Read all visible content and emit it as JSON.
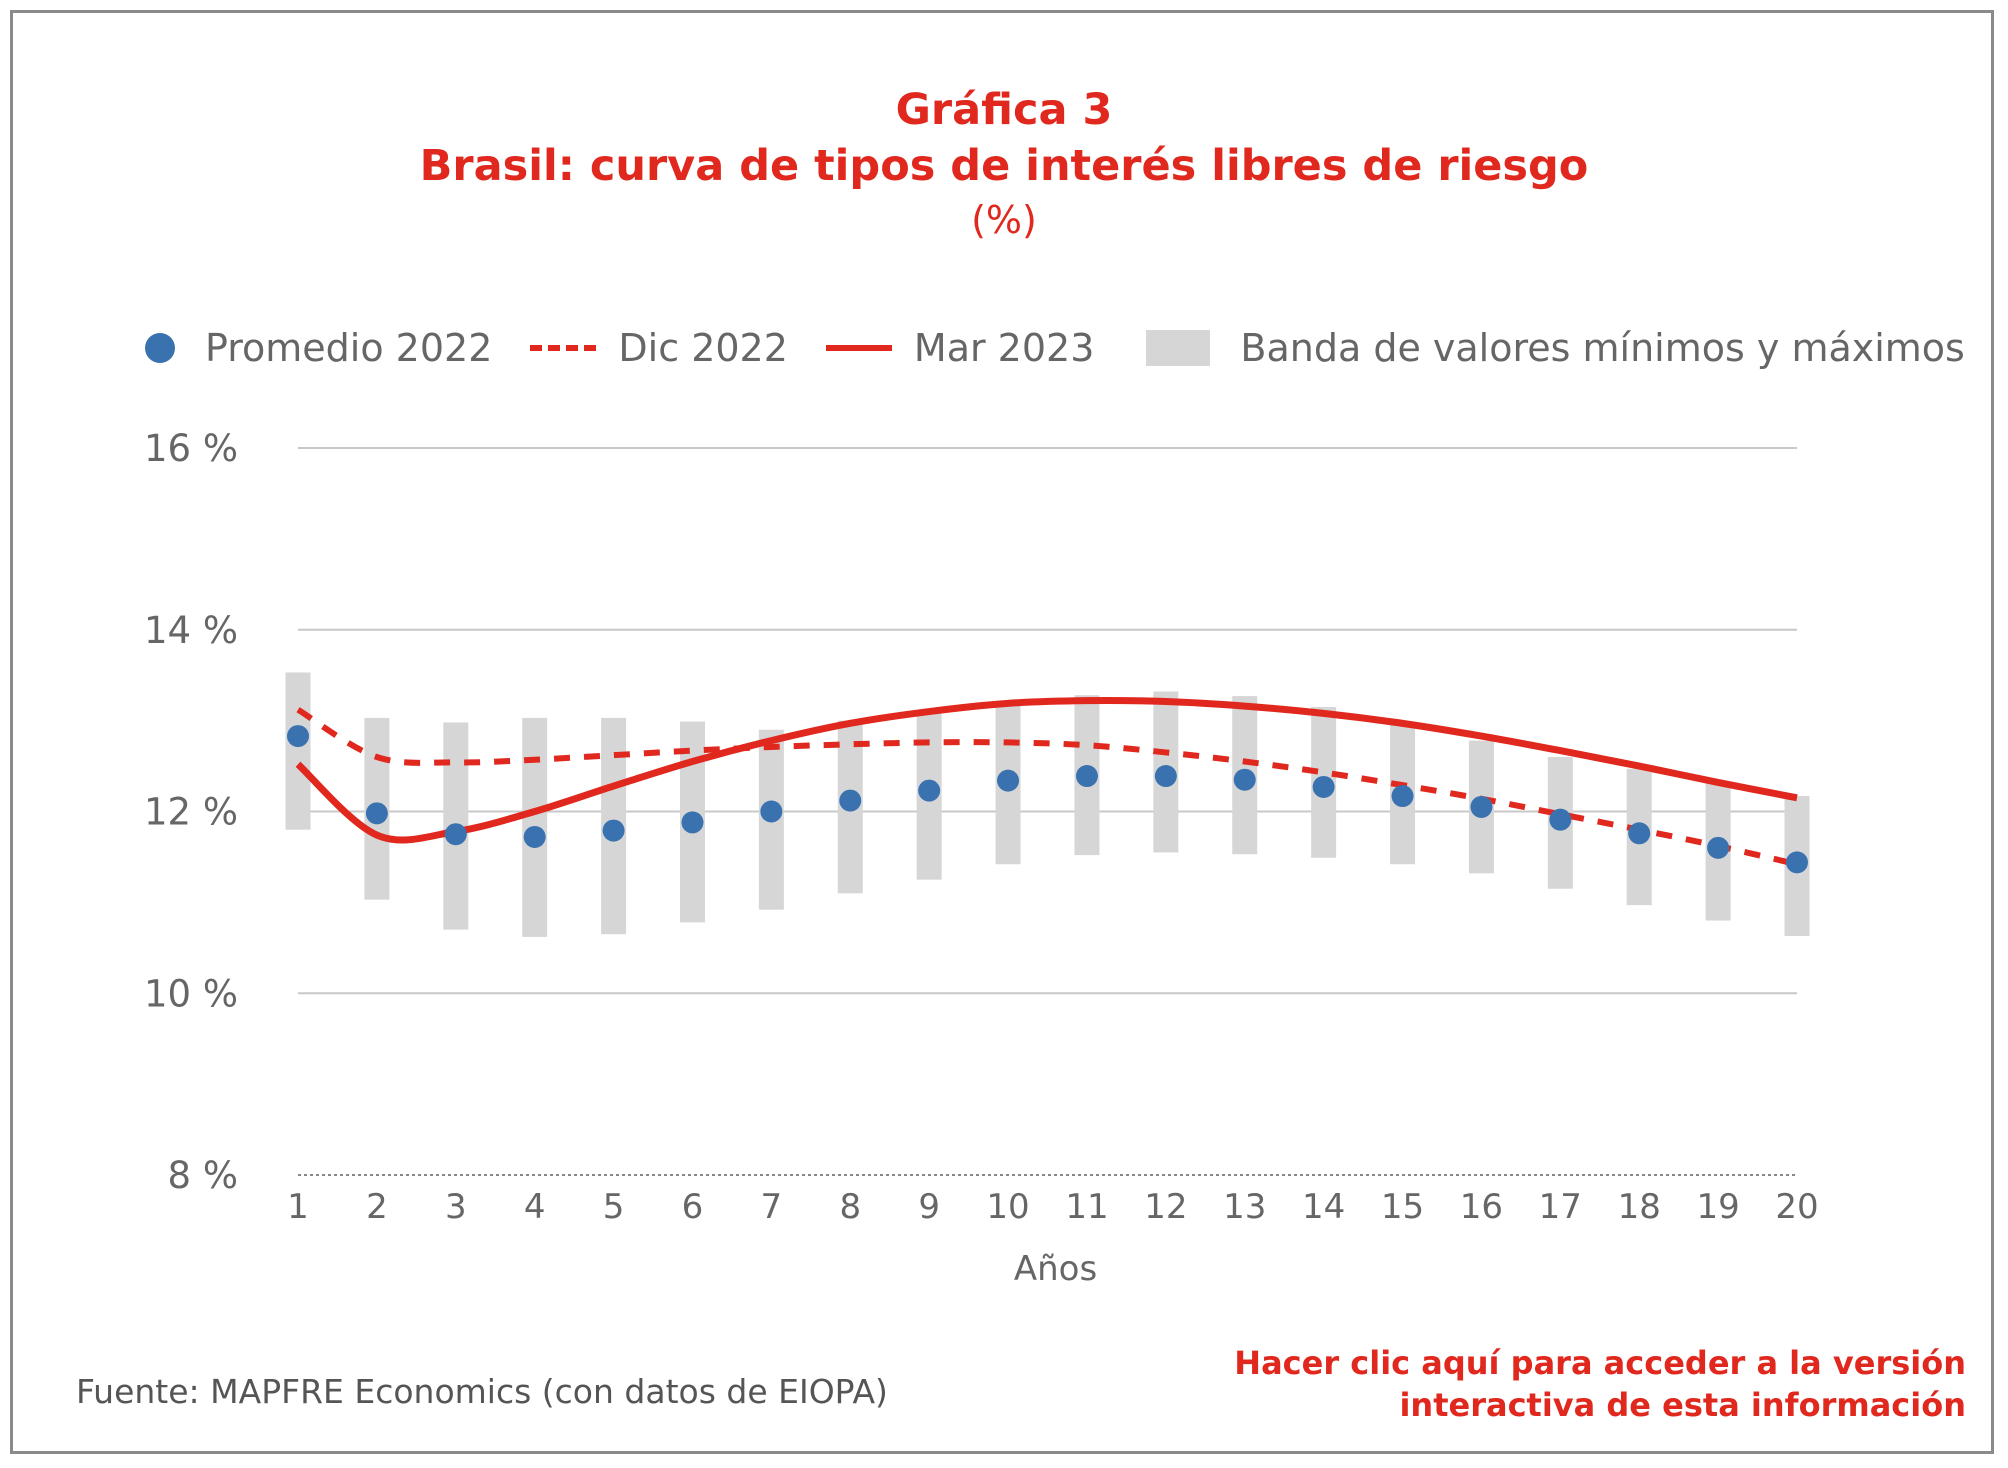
{
  "title_line1": "Gráfica 3",
  "title_line2": "Brasil: curva de tipos de interés libres de riesgo",
  "title_line3": "(%)",
  "legend": {
    "promedio": "Promedio 2022",
    "dic": "Dic 2022",
    "mar": "Mar 2023",
    "banda": "Banda de valores mínimos y máximos"
  },
  "source": "Fuente: MAPFRE Economics (con datos de EIOPA)",
  "link_line1": "Hacer clic aquí para acceder a la versión",
  "link_line2": "interactiva de esta información",
  "colors": {
    "accent": "#e0281e",
    "dots": "#3a72b0",
    "band": "#d6d6d6",
    "grid": "#c8c8c8"
  },
  "chart_data": {
    "type": "line",
    "xlabel": "Años",
    "ylabel": "",
    "ylim": [
      8,
      16
    ],
    "yticks": [
      8,
      10,
      12,
      14,
      16
    ],
    "ytick_labels": [
      "8 %",
      "10 %",
      "12 %",
      "14 %",
      "16 %"
    ],
    "x": [
      1,
      2,
      3,
      4,
      5,
      6,
      7,
      8,
      9,
      10,
      11,
      12,
      13,
      14,
      15,
      16,
      17,
      18,
      19,
      20
    ],
    "grid": true,
    "legend_position": "top",
    "series": [
      {
        "name": "Promedio 2022",
        "style": "dots",
        "values": [
          12.83,
          11.98,
          11.75,
          11.72,
          11.79,
          11.88,
          12.0,
          12.12,
          12.23,
          12.34,
          12.39,
          12.39,
          12.35,
          12.27,
          12.17,
          12.05,
          11.91,
          11.76,
          11.6,
          11.44
        ]
      },
      {
        "name": "Dic 2022",
        "style": "dashed",
        "values": [
          13.12,
          12.6,
          12.54,
          12.57,
          12.62,
          12.67,
          12.71,
          12.74,
          12.76,
          12.76,
          12.73,
          12.65,
          12.55,
          12.43,
          12.29,
          12.14,
          11.97,
          11.8,
          11.62,
          11.42
        ]
      },
      {
        "name": "Mar 2023",
        "style": "solid",
        "values": [
          12.52,
          11.74,
          11.78,
          12.0,
          12.28,
          12.55,
          12.78,
          12.97,
          13.1,
          13.19,
          13.22,
          13.21,
          13.16,
          13.08,
          12.97,
          12.83,
          12.67,
          12.5,
          12.32,
          12.15
        ]
      },
      {
        "name": "Banda de valores mínimos y máximos",
        "style": "band",
        "min": [
          11.8,
          11.03,
          10.7,
          10.62,
          10.65,
          10.78,
          10.92,
          11.1,
          11.25,
          11.42,
          11.52,
          11.55,
          11.53,
          11.49,
          11.42,
          11.32,
          11.15,
          10.97,
          10.8,
          10.63
        ],
        "max": [
          13.53,
          13.03,
          12.98,
          13.03,
          13.03,
          12.99,
          12.9,
          13.0,
          13.1,
          13.2,
          13.28,
          13.32,
          13.27,
          13.15,
          12.98,
          12.78,
          12.6,
          12.47,
          12.33,
          12.17
        ]
      }
    ]
  }
}
